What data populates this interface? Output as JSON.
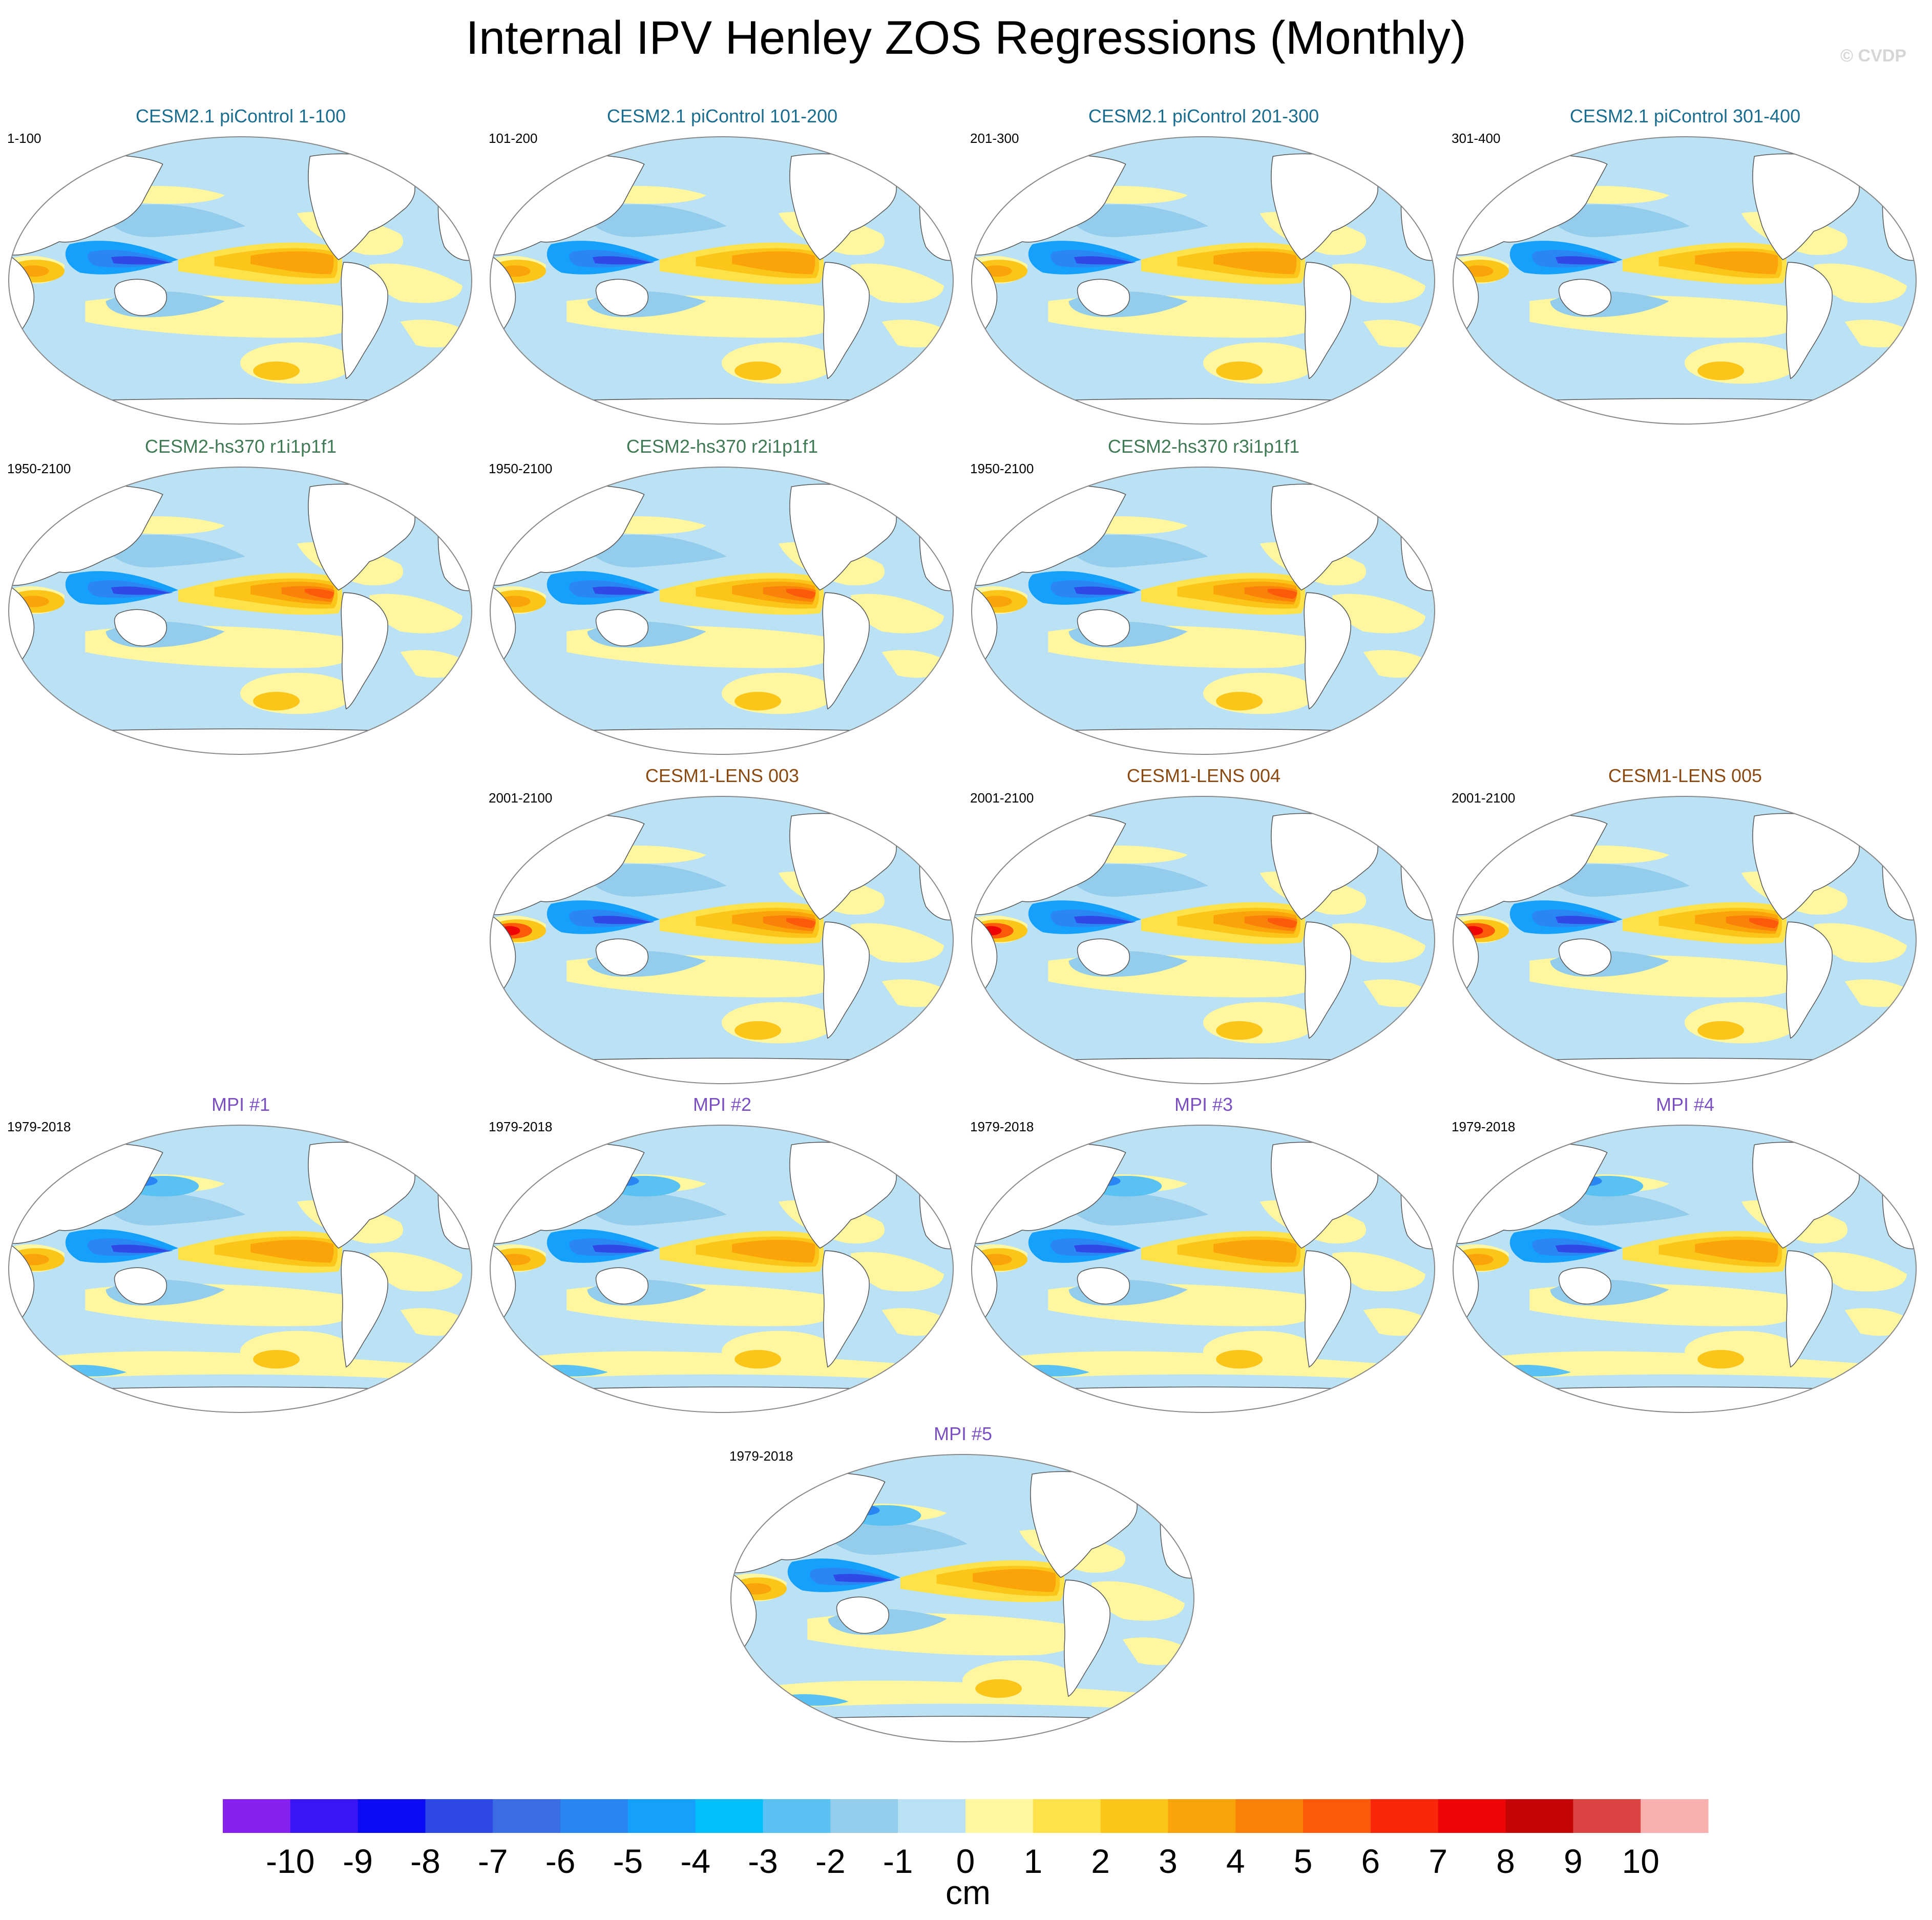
{
  "figure": {
    "title": "Internal IPV Henley ZOS Regressions (Monthly)",
    "watermark": "© CVDP"
  },
  "colors": {
    "title_cesm21_picontrol": "#1a6d8e",
    "title_cesm2_hs370": "#3f7a55",
    "title_cesm1_lens": "#8a4a12",
    "title_mpi": "#7a4fc2",
    "land": "#ffffff",
    "coast": "#555555",
    "map_border": "#888888"
  },
  "panels": [
    {
      "title": "CESM2.1 piControl 1-100",
      "period": "1-100",
      "group": "picontrol"
    },
    {
      "title": "CESM2.1 piControl 101-200",
      "period": "101-200",
      "group": "picontrol"
    },
    {
      "title": "CESM2.1 piControl 201-300",
      "period": "201-300",
      "group": "picontrol"
    },
    {
      "title": "CESM2.1 piControl 301-400",
      "period": "301-400",
      "group": "picontrol"
    },
    {
      "title": "CESM2-hs370 r1i1p1f1",
      "period": "1950-2100",
      "group": "hs370"
    },
    {
      "title": "CESM2-hs370 r2i1p1f1",
      "period": "1950-2100",
      "group": "hs370"
    },
    {
      "title": "CESM2-hs370 r3i1p1f1",
      "period": "1950-2100",
      "group": "hs370"
    },
    {
      "title": "CESM1-LENS 003",
      "period": "2001-2100",
      "group": "lens"
    },
    {
      "title": "CESM1-LENS 004",
      "period": "2001-2100",
      "group": "lens"
    },
    {
      "title": "CESM1-LENS 005",
      "period": "2001-2100",
      "group": "lens"
    },
    {
      "title": "MPI #1",
      "period": "1979-2018",
      "group": "mpi"
    },
    {
      "title": "MPI #2",
      "period": "1979-2018",
      "group": "mpi"
    },
    {
      "title": "MPI #3",
      "period": "1979-2018",
      "group": "mpi"
    },
    {
      "title": "MPI #4",
      "period": "1979-2018",
      "group": "mpi"
    },
    {
      "title": "MPI #5",
      "period": "1979-2018",
      "group": "mpi"
    }
  ],
  "colorbar": {
    "unit_label": "cm",
    "tick_labels": [
      "-10",
      "-9",
      "-8",
      "-7",
      "-6",
      "-5",
      "-4",
      "-3",
      "-2",
      "-1",
      "0",
      "1",
      "2",
      "3",
      "4",
      "5",
      "6",
      "7",
      "8",
      "9",
      "10"
    ],
    "colors": [
      "#8522f0",
      "#3b15f6",
      "#0b0bf6",
      "#2e49e6",
      "#3a6ee2",
      "#2a86f3",
      "#14a0fb",
      "#02c0fb",
      "#5ac2f3",
      "#94cdec",
      "#bbe1f4",
      "#fff6a0",
      "#fee24a",
      "#fbc51a",
      "#fba40a",
      "#fb820a",
      "#fc5a0a",
      "#fc260a",
      "#ee0606",
      "#c60606",
      "#dc4444",
      "#fbb0b0"
    ]
  }
}
